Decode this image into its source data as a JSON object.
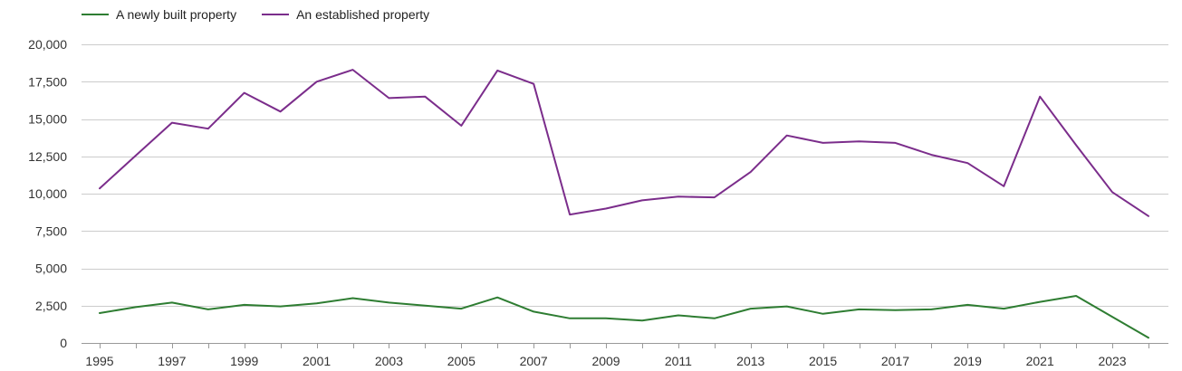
{
  "chart_data": {
    "type": "line",
    "title": "",
    "xlabel": "",
    "ylabel": "",
    "legend_position": "top-left",
    "grid": true,
    "ylim": [
      0,
      20000
    ],
    "x": [
      1995,
      1996,
      1997,
      1998,
      1999,
      2000,
      2001,
      2002,
      2003,
      2004,
      2005,
      2006,
      2007,
      2008,
      2009,
      2010,
      2011,
      2012,
      2013,
      2014,
      2015,
      2016,
      2017,
      2018,
      2019,
      2020,
      2021,
      2022,
      2023,
      2024
    ],
    "x_tick_labels": [
      "1995",
      "1997",
      "1999",
      "2001",
      "2003",
      "2005",
      "2007",
      "2009",
      "2011",
      "2013",
      "2015",
      "2017",
      "2019",
      "2021",
      "2023"
    ],
    "x_tick_values": [
      1995,
      1997,
      1999,
      2001,
      2003,
      2005,
      2007,
      2009,
      2011,
      2013,
      2015,
      2017,
      2019,
      2021,
      2023
    ],
    "y_tick_labels": [
      "0",
      "2,500",
      "5,000",
      "7,500",
      "10,000",
      "12,500",
      "15,000",
      "17,500",
      "20,000"
    ],
    "y_tick_values": [
      0,
      2500,
      5000,
      7500,
      10000,
      12500,
      15000,
      17500,
      20000
    ],
    "series": [
      {
        "name": "A newly built property",
        "color": "#2e7d32",
        "values": [
          2000,
          2400,
          2700,
          2250,
          2550,
          2450,
          2650,
          3000,
          2700,
          2500,
          2300,
          3050,
          2100,
          1650,
          1650,
          1500,
          1850,
          1650,
          2300,
          2450,
          1950,
          2250,
          2200,
          2250,
          2550,
          2300,
          2750,
          3150,
          1750,
          350
        ]
      },
      {
        "name": "An established property",
        "color": "#7b2d8b",
        "values": [
          10350,
          12550,
          14750,
          14350,
          16750,
          15500,
          17500,
          18300,
          16400,
          16500,
          14550,
          18250,
          17350,
          8600,
          9000,
          9550,
          9800,
          9750,
          11450,
          13900,
          13400,
          13500,
          13400,
          12600,
          12050,
          10500,
          16500,
          13250,
          10100,
          8500
        ]
      }
    ]
  }
}
